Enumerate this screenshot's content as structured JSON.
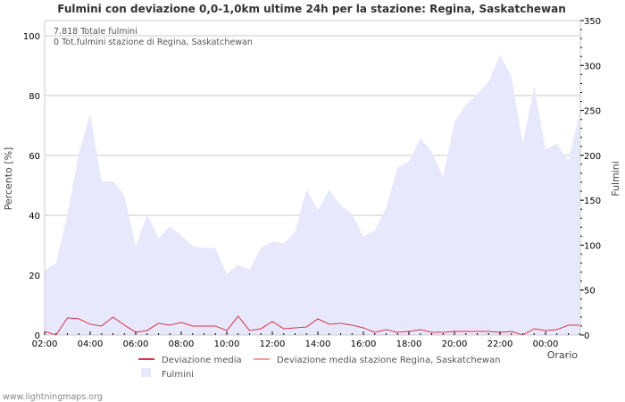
{
  "chart_data": {
    "type": "area",
    "title": "Fulmini con deviazione 0,0-1,0km ultime 24h per la stazione: Regina, Saskatchewan",
    "annotations": [
      "7.818 Totale fulmini",
      "0 Tot.fulmini stazione di Regina, Saskatchewan"
    ],
    "xlabel": "Orario",
    "ylabel_left": "Percento   [%]",
    "ylabel_right": "Fulmini",
    "ylim_left": [
      0,
      105
    ],
    "ylim_right": [
      0,
      350
    ],
    "yticks_left": [
      0,
      20,
      40,
      60,
      80,
      100
    ],
    "yticks_right": [
      0,
      50,
      100,
      150,
      200,
      250,
      300,
      350
    ],
    "xtick_labels": [
      "02:00",
      "04:00",
      "06:00",
      "08:00",
      "10:00",
      "12:00",
      "14:00",
      "16:00",
      "18:00",
      "20:00",
      "22:00",
      "00:00"
    ],
    "x_step_minutes": 30,
    "grid": true,
    "legend_position": "bottom",
    "series": [
      {
        "name": "Deviazione media",
        "axis": "left",
        "style": "line",
        "color": "#d9344a",
        "values": [
          1.2,
          0,
          5.7,
          5.4,
          3.6,
          3.0,
          6.0,
          3.3,
          0.9,
          1.5,
          3.9,
          3.3,
          4.2,
          3.0,
          3.0,
          3.0,
          1.5,
          6.3,
          1.5,
          2.1,
          4.5,
          2.1,
          2.4,
          2.7,
          5.4,
          3.6,
          3.9,
          3.3,
          2.4,
          0.9,
          1.8,
          0.9,
          1.2,
          1.8,
          0.9,
          0.9,
          1.2,
          1.2,
          1.2,
          1.2,
          0.9,
          1.2,
          0,
          2.1,
          1.5,
          1.8,
          3.3,
          3.3
        ]
      },
      {
        "name": "Deviazione media stazione Regina, Saskatchewan",
        "axis": "left",
        "style": "line",
        "color": "#ff9999",
        "values": []
      },
      {
        "name": "Fulmini",
        "axis": "right",
        "style": "area",
        "color": "#e8e8fc",
        "values": [
          72,
          80,
          134,
          202,
          246,
          171,
          171,
          156,
          99,
          134,
          108,
          121,
          111,
          99,
          97,
          97,
          68,
          78,
          73,
          97,
          104,
          102,
          115,
          162,
          139,
          162,
          144,
          135,
          110,
          116,
          142,
          186,
          193,
          219,
          204,
          176,
          237,
          256,
          268,
          282,
          312,
          288,
          213,
          277,
          207,
          213,
          194,
          248
        ]
      }
    ]
  },
  "footer": "www.lightningmaps.org"
}
